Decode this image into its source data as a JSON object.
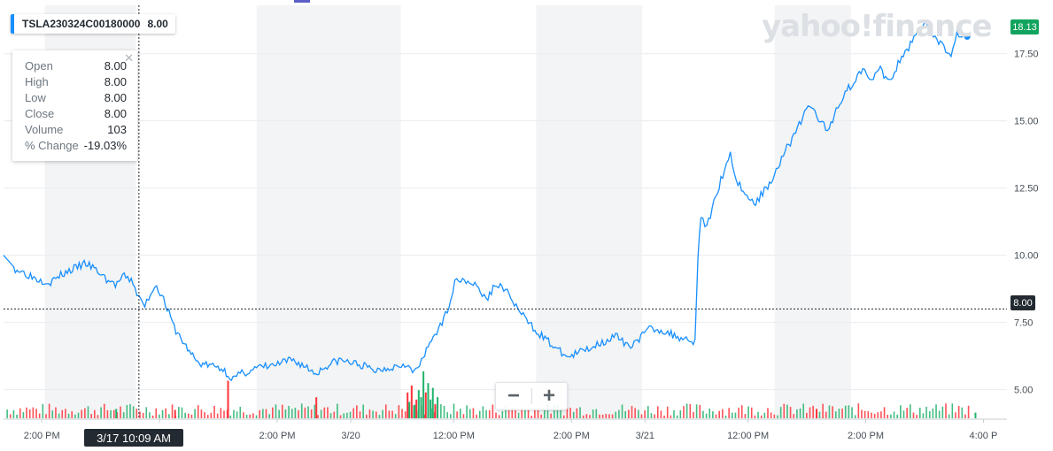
{
  "legend": {
    "symbol": "TSLA230324C00180000",
    "price": "8.00"
  },
  "tooltip": {
    "rows": [
      {
        "label": "Open",
        "value": "8.00"
      },
      {
        "label": "High",
        "value": "8.00"
      },
      {
        "label": "Low",
        "value": "8.00"
      },
      {
        "label": "Close",
        "value": "8.00"
      },
      {
        "label": "Volume",
        "value": "103"
      },
      {
        "label": "% Change",
        "value": "-19.03%"
      }
    ],
    "close_icon": "close-icon"
  },
  "watermark": "yahoo!finance",
  "crosshair": {
    "time_label": "3/17 10:09 AM",
    "price_label": "8.00",
    "price": 8.0
  },
  "last_price_label": "18.13",
  "zoom": {
    "minus": "−",
    "plus": "+"
  },
  "colors": {
    "line": "#188fff",
    "up_volume": "#21b26b",
    "down_volume": "#ff333a",
    "last_tag": "#12a45f",
    "shade": "#f3f4f5"
  },
  "chart_data": {
    "type": "line",
    "title": "",
    "xlabel": "",
    "ylabel": "",
    "ylim": [
      3.9,
      19.3
    ],
    "y_ticks": [
      "17.50",
      "15.00",
      "12.50",
      "10.00",
      "7.50",
      "5.00"
    ],
    "y_tick_values": [
      17.5,
      15.0,
      12.5,
      10.0,
      7.5,
      5.0
    ],
    "x_ticks": [
      "2:00 PM",
      "12:00 PM",
      "2:00 PM",
      "3/20",
      "12:00 PM",
      "2:00 PM",
      "3/21",
      "12:00 PM",
      "2:00 PM",
      "4:00 P"
    ],
    "x_tick_values": [
      0.35,
      2.35,
      4.35,
      5.6,
      7.35,
      9.35,
      10.6,
      12.35,
      14.35,
      16.35
    ],
    "x_domain": [
      -0.3,
      16.75
    ],
    "sessions": [
      {
        "open": 0.4,
        "close": 1.95
      },
      {
        "open": 4.0,
        "close": 6.45
      },
      {
        "open": 8.75,
        "close": 10.55
      },
      {
        "open": 12.8,
        "close": 14.1
      }
    ],
    "series": [
      {
        "values": [
          [
            -0.3,
            10.0
          ],
          [
            -0.1,
            9.5
          ],
          [
            0.1,
            9.3
          ],
          [
            0.3,
            9.1
          ],
          [
            0.5,
            9.0
          ],
          [
            0.7,
            9.3
          ],
          [
            0.9,
            9.5
          ],
          [
            1.1,
            9.7
          ],
          [
            1.3,
            9.4
          ],
          [
            1.45,
            9.1
          ],
          [
            1.6,
            8.9
          ],
          [
            1.75,
            9.2
          ],
          [
            1.9,
            9.0
          ],
          [
            2.0,
            8.4
          ],
          [
            2.1,
            8.1
          ],
          [
            2.2,
            8.6
          ],
          [
            2.3,
            8.9
          ],
          [
            2.45,
            8.2
          ],
          [
            2.6,
            7.3
          ],
          [
            2.8,
            6.6
          ],
          [
            3.0,
            6.0
          ],
          [
            3.2,
            5.9
          ],
          [
            3.4,
            5.8
          ],
          [
            3.6,
            5.4
          ],
          [
            3.75,
            5.6
          ],
          [
            4.0,
            5.8
          ],
          [
            4.3,
            5.9
          ],
          [
            4.6,
            6.1
          ],
          [
            4.8,
            5.9
          ],
          [
            5.0,
            5.6
          ],
          [
            5.2,
            5.9
          ],
          [
            5.4,
            6.1
          ],
          [
            5.6,
            6.0
          ],
          [
            5.8,
            5.9
          ],
          [
            6.0,
            5.7
          ],
          [
            6.2,
            5.8
          ],
          [
            6.4,
            5.9
          ],
          [
            6.55,
            6.0
          ],
          [
            6.65,
            5.6
          ],
          [
            6.8,
            6.0
          ],
          [
            7.0,
            7.0
          ],
          [
            7.15,
            7.4
          ],
          [
            7.3,
            8.4
          ],
          [
            7.4,
            9.2
          ],
          [
            7.5,
            9.1
          ],
          [
            7.65,
            9.0
          ],
          [
            7.8,
            8.7
          ],
          [
            7.9,
            8.3
          ],
          [
            8.05,
            8.9
          ],
          [
            8.2,
            8.8
          ],
          [
            8.35,
            8.3
          ],
          [
            8.5,
            7.8
          ],
          [
            8.7,
            7.3
          ],
          [
            8.9,
            6.9
          ],
          [
            9.1,
            6.5
          ],
          [
            9.3,
            6.2
          ],
          [
            9.5,
            6.4
          ],
          [
            9.7,
            6.6
          ],
          [
            9.9,
            6.8
          ],
          [
            10.1,
            7.0
          ],
          [
            10.3,
            6.6
          ],
          [
            10.5,
            6.9
          ],
          [
            10.7,
            7.3
          ],
          [
            10.9,
            7.2
          ],
          [
            11.1,
            7.0
          ],
          [
            11.3,
            6.9
          ],
          [
            11.45,
            6.8
          ],
          [
            11.5,
            10.0
          ],
          [
            11.55,
            11.5
          ],
          [
            11.65,
            11.0
          ],
          [
            11.8,
            12.2
          ],
          [
            11.95,
            13.2
          ],
          [
            12.05,
            13.8
          ],
          [
            12.15,
            12.8
          ],
          [
            12.3,
            12.3
          ],
          [
            12.45,
            11.9
          ],
          [
            12.6,
            12.3
          ],
          [
            12.8,
            13.0
          ],
          [
            12.95,
            13.8
          ],
          [
            13.1,
            14.3
          ],
          [
            13.25,
            15.0
          ],
          [
            13.4,
            15.6
          ],
          [
            13.55,
            15.1
          ],
          [
            13.7,
            14.6
          ],
          [
            13.85,
            15.4
          ],
          [
            14.0,
            16.1
          ],
          [
            14.15,
            16.4
          ],
          [
            14.3,
            17.0
          ],
          [
            14.45,
            16.6
          ],
          [
            14.6,
            16.9
          ],
          [
            14.75,
            16.4
          ],
          [
            14.9,
            17.1
          ],
          [
            15.05,
            17.6
          ],
          [
            15.2,
            18.3
          ],
          [
            15.35,
            18.7
          ],
          [
            15.5,
            18.2
          ],
          [
            15.65,
            17.8
          ],
          [
            15.8,
            17.4
          ],
          [
            15.9,
            18.3
          ],
          [
            16.0,
            18.13
          ]
        ]
      }
    ],
    "volume": {
      "scale_max": 100,
      "bars": [
        [
          6.55,
          55,
          "down"
        ],
        [
          6.58,
          35,
          "up"
        ],
        [
          6.62,
          70,
          "down"
        ],
        [
          6.66,
          28,
          "up"
        ],
        [
          6.7,
          40,
          "down"
        ],
        [
          6.74,
          60,
          "up"
        ],
        [
          6.78,
          45,
          "up"
        ],
        [
          6.82,
          100,
          "up"
        ],
        [
          6.86,
          55,
          "down"
        ],
        [
          6.9,
          75,
          "up"
        ],
        [
          6.94,
          40,
          "up"
        ],
        [
          6.98,
          65,
          "up"
        ],
        [
          7.02,
          30,
          "down"
        ],
        [
          7.06,
          45,
          "up"
        ],
        [
          3.5,
          80,
          "down"
        ],
        [
          5.0,
          45,
          "down"
        ],
        [
          1.6,
          20,
          "up"
        ],
        [
          2.6,
          18,
          "down"
        ],
        [
          13.5,
          20,
          "down"
        ],
        [
          16.2,
          12,
          "up"
        ]
      ]
    },
    "last_point": {
      "x": 16.0,
      "y": 18.13
    },
    "crosshair_x": 2.0
  }
}
